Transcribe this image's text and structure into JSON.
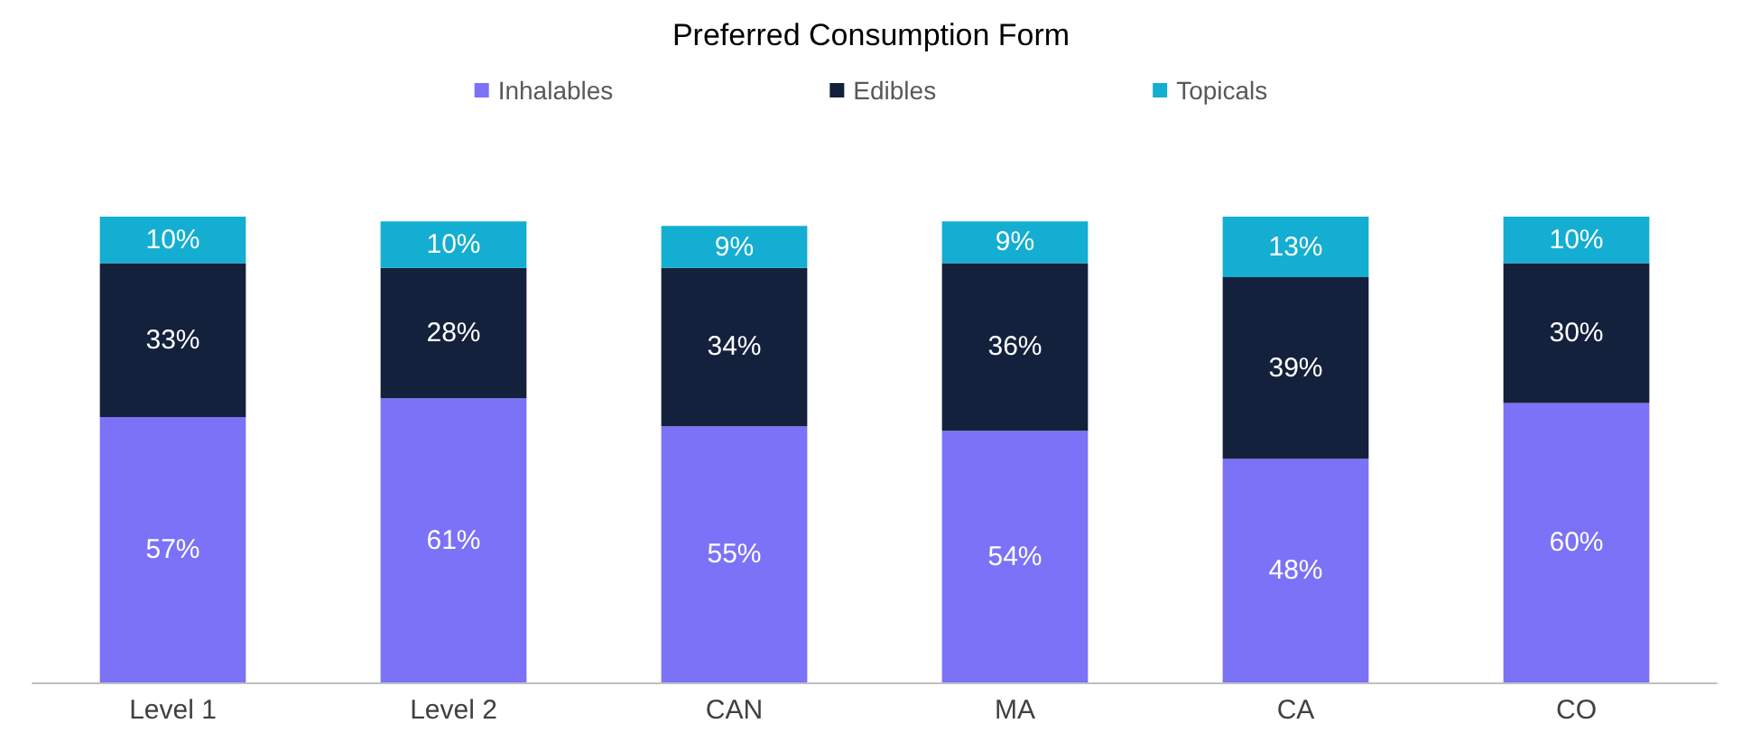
{
  "chart_data": {
    "type": "bar",
    "title": "Preferred Consumption Form",
    "categories": [
      "Level 1",
      "Level 2",
      "CAN",
      "MA",
      "CA",
      "CO"
    ],
    "stacked": true,
    "legend": "top",
    "series": [
      {
        "name": "Inhalables",
        "color": "#7b72f7",
        "values": [
          57,
          61,
          55,
          54,
          48,
          60
        ],
        "value_labels": [
          "57%",
          "61%",
          "55%",
          "54%",
          "48%",
          "60%"
        ]
      },
      {
        "name": "Edibles",
        "color": "#14213d",
        "values": [
          33,
          28,
          34,
          36,
          39,
          30
        ],
        "value_labels": [
          "33%",
          "28%",
          "34%",
          "36%",
          "39%",
          "30%"
        ]
      },
      {
        "name": "Topicals",
        "color": "#13aed1",
        "values": [
          10,
          10,
          9,
          9,
          13,
          10
        ],
        "value_labels": [
          "10%",
          "10%",
          "9%",
          "9%",
          "13%",
          "10%"
        ]
      }
    ]
  }
}
